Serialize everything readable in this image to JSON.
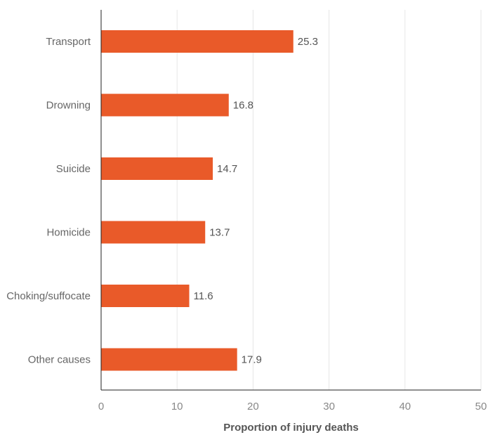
{
  "chart_data": {
    "type": "bar",
    "orientation": "horizontal",
    "categories": [
      "Transport",
      "Drowning",
      "Suicide",
      "Homicide",
      "Choking/suffocate",
      "Other causes"
    ],
    "values": [
      25.3,
      16.8,
      14.7,
      13.7,
      11.6,
      17.9
    ],
    "value_labels": [
      "25.3",
      "16.8",
      "14.7",
      "13.7",
      "11.6",
      "17.9"
    ],
    "xlabel": "Proportion of injury deaths",
    "xlim": [
      0,
      50
    ],
    "xticks": [
      "0",
      "10",
      "20",
      "30",
      "40",
      "50"
    ],
    "grid": "vertical",
    "bar_color": "#E95A29"
  }
}
